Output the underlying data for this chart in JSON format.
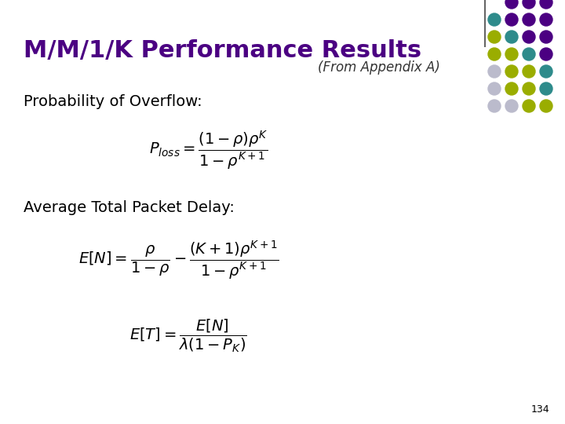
{
  "title": "M/M/1/K Performance Results",
  "title_color": "#4B0082",
  "subtitle": "(From Appendix A)",
  "subtitle_color": "#333333",
  "label1": "Probability of Overflow:",
  "label2": "Average Total Packet Delay:",
  "formula1": "$P_{loss} = \\dfrac{(1-\\rho)\\rho^{K}}{1-\\rho^{K+1}}$",
  "formula2": "$E[N] = \\dfrac{\\rho}{1-\\rho} - \\dfrac{(K+1)\\rho^{K+1}}{1-\\rho^{K+1}}$",
  "formula3": "$E[T] = \\dfrac{E[N]}{\\lambda(1-P_K)}$",
  "page_number": "134",
  "bg_color": "#ffffff",
  "dot_grid": [
    [
      null,
      "#4B0082",
      "#4B0082",
      "#4B0082"
    ],
    [
      "#2E8B8B",
      "#4B0082",
      "#4B0082",
      "#4B0082"
    ],
    [
      "#9AAD00",
      "#2E8B8B",
      "#4B0082",
      "#4B0082"
    ],
    [
      "#9AAD00",
      "#9AAD00",
      "#2E8B8B",
      "#4B0082"
    ],
    [
      "#BBBBCC",
      "#9AAD00",
      "#9AAD00",
      "#2E8B8B"
    ],
    [
      "#BBBBCC",
      "#9AAD00",
      "#9AAD00",
      "#2E8B8B"
    ],
    [
      "#BBBBCC",
      "#BBBBCC",
      "#9AAD00",
      "#9AAD00"
    ]
  ]
}
